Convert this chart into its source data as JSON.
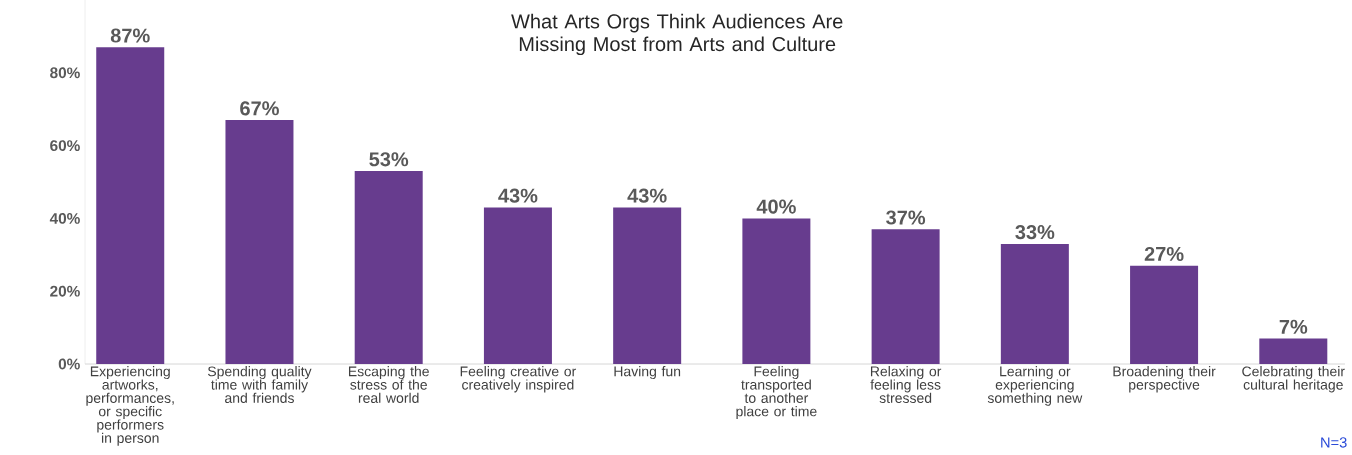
{
  "chart_data": {
    "type": "bar",
    "title": "What Arts Orgs Think Audiences Are Missing Most from Arts and Culture",
    "categories": [
      "Experiencing artworks, performances, or specific performers in person",
      "Spending quality time with family and friends",
      "Escaping the stress of the real world",
      "Feeling creative or creatively inspired",
      "Having fun",
      "Feeling transported to another place or time",
      "Relaxing or feeling less stressed",
      "Learning or experiencing something new",
      "Broadening their perspective",
      "Celebrating their cultural heritage"
    ],
    "values": [
      87,
      67,
      53,
      43,
      43,
      40,
      37,
      33,
      27,
      7
    ],
    "value_labels": [
      "87%",
      "67%",
      "53%",
      "43%",
      "43%",
      "40%",
      "37%",
      "33%",
      "27%",
      "7%"
    ],
    "color": "#673c8e",
    "yticks": [
      {
        "value": 0,
        "label": "0%"
      },
      {
        "value": 20,
        "label": "20%"
      },
      {
        "value": 40,
        "label": "40%"
      },
      {
        "value": 60,
        "label": "60%"
      },
      {
        "value": 80,
        "label": "80%"
      }
    ],
    "ylim": [
      0,
      100
    ],
    "grid": false,
    "annotations": [
      "N=3"
    ]
  }
}
